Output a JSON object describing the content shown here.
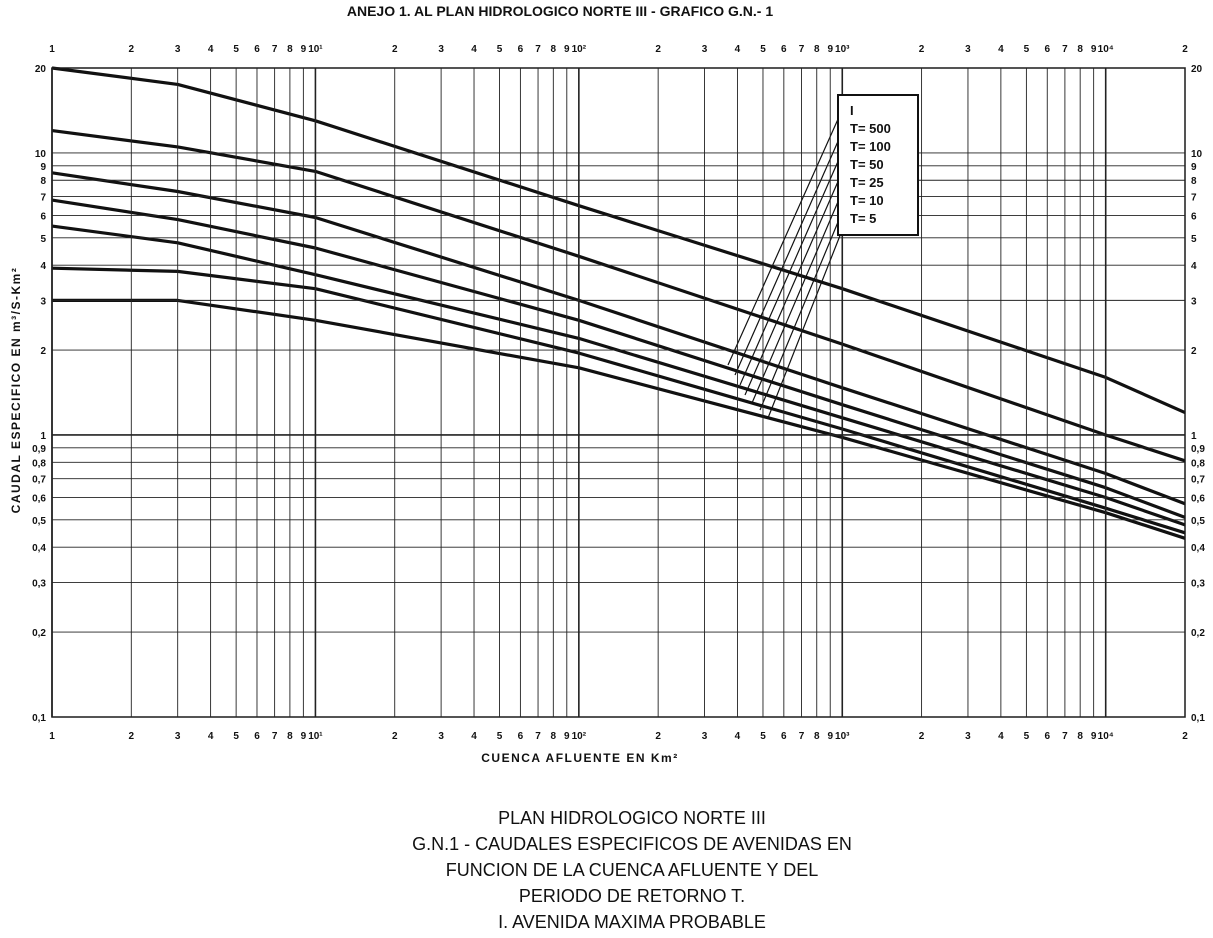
{
  "chart_data": {
    "type": "line",
    "title": "ANEJO 1. AL PLAN HIDROLOGICO NORTE III - GRAFICO G.N.- 1",
    "x_label": "CUENCA AFLUENTE EN Km²",
    "y_label": "CAUDAL ESPECIFICO EN m³/S-Km²",
    "caption": [
      "PLAN HIDROLOGICO NORTE III",
      "G.N.1 - CAUDALES ESPECIFICOS DE AVENIDAS EN",
      "FUNCION DE LA CUENCA AFLUENTE Y DEL",
      "PERIODO DE RETORNO T.",
      "I. AVENIDA MAXIMA PROBABLE"
    ],
    "log_x": true,
    "log_y": true,
    "grid": true,
    "xlim": [
      1,
      20000
    ],
    "ylim": [
      0.1,
      20
    ],
    "xticks": [
      1,
      2,
      3,
      4,
      5,
      6,
      7,
      8,
      9,
      {
        "value": 10,
        "label": "10¹"
      },
      {
        "value": 20,
        "label": "2"
      },
      {
        "value": 30,
        "label": "3"
      },
      {
        "value": 40,
        "label": "4"
      },
      {
        "value": 50,
        "label": "5"
      },
      {
        "value": 60,
        "label": "6"
      },
      {
        "value": 70,
        "label": "7"
      },
      {
        "value": 80,
        "label": "8"
      },
      {
        "value": 90,
        "label": "9"
      },
      {
        "value": 100,
        "label": "10²"
      },
      {
        "value": 200,
        "label": "2"
      },
      {
        "value": 300,
        "label": "3"
      },
      {
        "value": 400,
        "label": "4"
      },
      {
        "value": 500,
        "label": "5"
      },
      {
        "value": 600,
        "label": "6"
      },
      {
        "value": 700,
        "label": "7"
      },
      {
        "value": 800,
        "label": "8"
      },
      {
        "value": 900,
        "label": "9"
      },
      {
        "value": 1000,
        "label": "10³"
      },
      {
        "value": 2000,
        "label": "2"
      },
      {
        "value": 3000,
        "label": "3"
      },
      {
        "value": 4000,
        "label": "4"
      },
      {
        "value": 5000,
        "label": "5"
      },
      {
        "value": 6000,
        "label": "6"
      },
      {
        "value": 7000,
        "label": "7"
      },
      {
        "value": 8000,
        "label": "8"
      },
      {
        "value": 9000,
        "label": "9"
      },
      {
        "value": 10000,
        "label": "10⁴"
      },
      {
        "value": 20000,
        "label": "2"
      }
    ],
    "yticks": [
      {
        "value": 0.1,
        "label": "0,1"
      },
      {
        "value": 0.2,
        "label": "0,2"
      },
      {
        "value": 0.3,
        "label": "0,3"
      },
      {
        "value": 0.4,
        "label": "0,4"
      },
      {
        "value": 0.5,
        "label": "0,5"
      },
      {
        "value": 0.6,
        "label": "0,6"
      },
      {
        "value": 0.7,
        "label": "0,7"
      },
      {
        "value": 0.8,
        "label": "0,8"
      },
      {
        "value": 0.9,
        "label": "0,9"
      },
      1,
      2,
      3,
      4,
      5,
      6,
      7,
      8,
      9,
      10,
      20
    ],
    "x": [
      1,
      3,
      10,
      100,
      1000,
      10000,
      20000
    ],
    "series": [
      {
        "name": "I",
        "color": "#111111",
        "values": [
          20,
          17.5,
          13,
          6.5,
          3.3,
          1.6,
          1.2
        ]
      },
      {
        "name": "T= 500",
        "color": "#111111",
        "values": [
          12,
          10.5,
          8.6,
          4.3,
          2.1,
          1.0,
          0.81
        ]
      },
      {
        "name": "T= 100",
        "color": "#111111",
        "values": [
          8.5,
          7.3,
          5.9,
          3.0,
          1.47,
          0.73,
          0.57
        ]
      },
      {
        "name": "T= 50",
        "color": "#111111",
        "values": [
          6.8,
          5.8,
          4.6,
          2.55,
          1.28,
          0.65,
          0.51
        ]
      },
      {
        "name": "T= 25",
        "color": "#111111",
        "values": [
          5.5,
          4.8,
          3.7,
          2.2,
          1.15,
          0.6,
          0.48
        ]
      },
      {
        "name": "T= 10",
        "color": "#111111",
        "values": [
          3.9,
          3.8,
          3.3,
          1.95,
          1.05,
          0.55,
          0.45
        ]
      },
      {
        "name": "T= 5",
        "color": "#111111",
        "values": [
          3.0,
          3.0,
          2.55,
          1.73,
          0.98,
          0.53,
          0.43
        ]
      }
    ]
  }
}
